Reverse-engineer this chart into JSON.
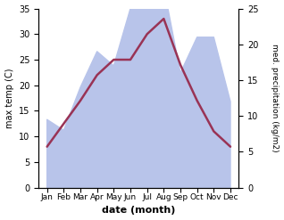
{
  "months": [
    "Jan",
    "Feb",
    "Mar",
    "Apr",
    "May",
    "Jun",
    "Jul",
    "Aug",
    "Sep",
    "Oct",
    "Nov",
    "Dec"
  ],
  "month_positions": [
    0,
    1,
    2,
    3,
    4,
    5,
    6,
    7,
    8,
    9,
    10,
    11
  ],
  "max_temp": [
    8,
    12.5,
    17,
    22,
    25,
    25,
    30,
    33,
    24,
    17,
    11,
    8
  ],
  "precipitation": [
    9.5,
    8,
    14,
    19,
    17,
    25,
    33,
    28,
    16,
    21,
    21,
    12
  ],
  "temp_color": "#993355",
  "precip_fill_color": "#b8c4ea",
  "temp_ylim": [
    0,
    35
  ],
  "precip_ylim": [
    0,
    25
  ],
  "temp_yticks": [
    0,
    5,
    10,
    15,
    20,
    25,
    30,
    35
  ],
  "precip_yticks": [
    0,
    5,
    10,
    15,
    20,
    25
  ],
  "xlabel": "date (month)",
  "ylabel_left": "max temp (C)",
  "ylabel_right": "med. precipitation (kg/m2)",
  "background_color": "#ffffff",
  "line_width": 1.8,
  "figsize": [
    3.18,
    2.47
  ],
  "dpi": 100
}
